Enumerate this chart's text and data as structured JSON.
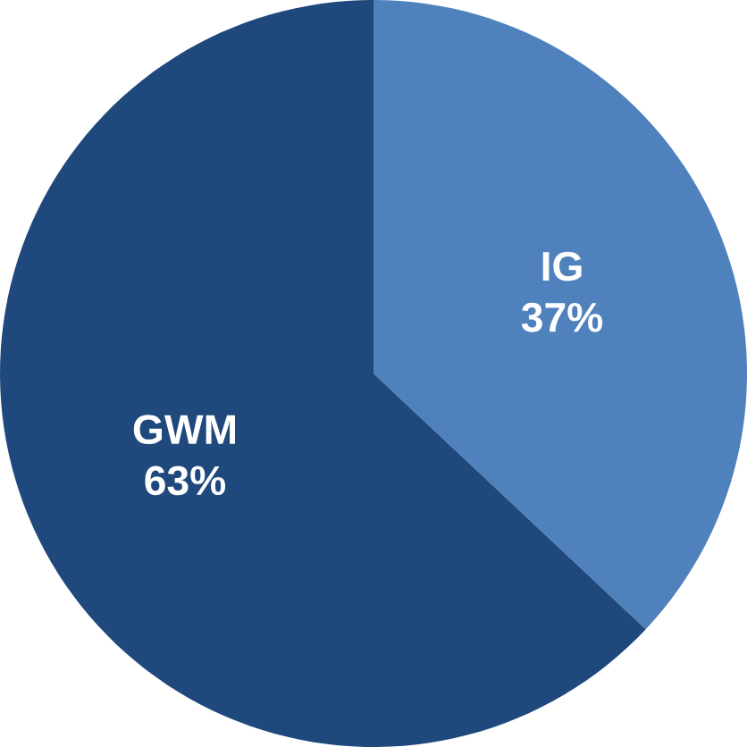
{
  "chart_data": {
    "type": "pie",
    "categories": [
      "IG",
      "GWM"
    ],
    "values": [
      37,
      63
    ],
    "colors": [
      "#4f81bd",
      "#1f497d"
    ],
    "value_labels": [
      "37%",
      "63%"
    ]
  }
}
